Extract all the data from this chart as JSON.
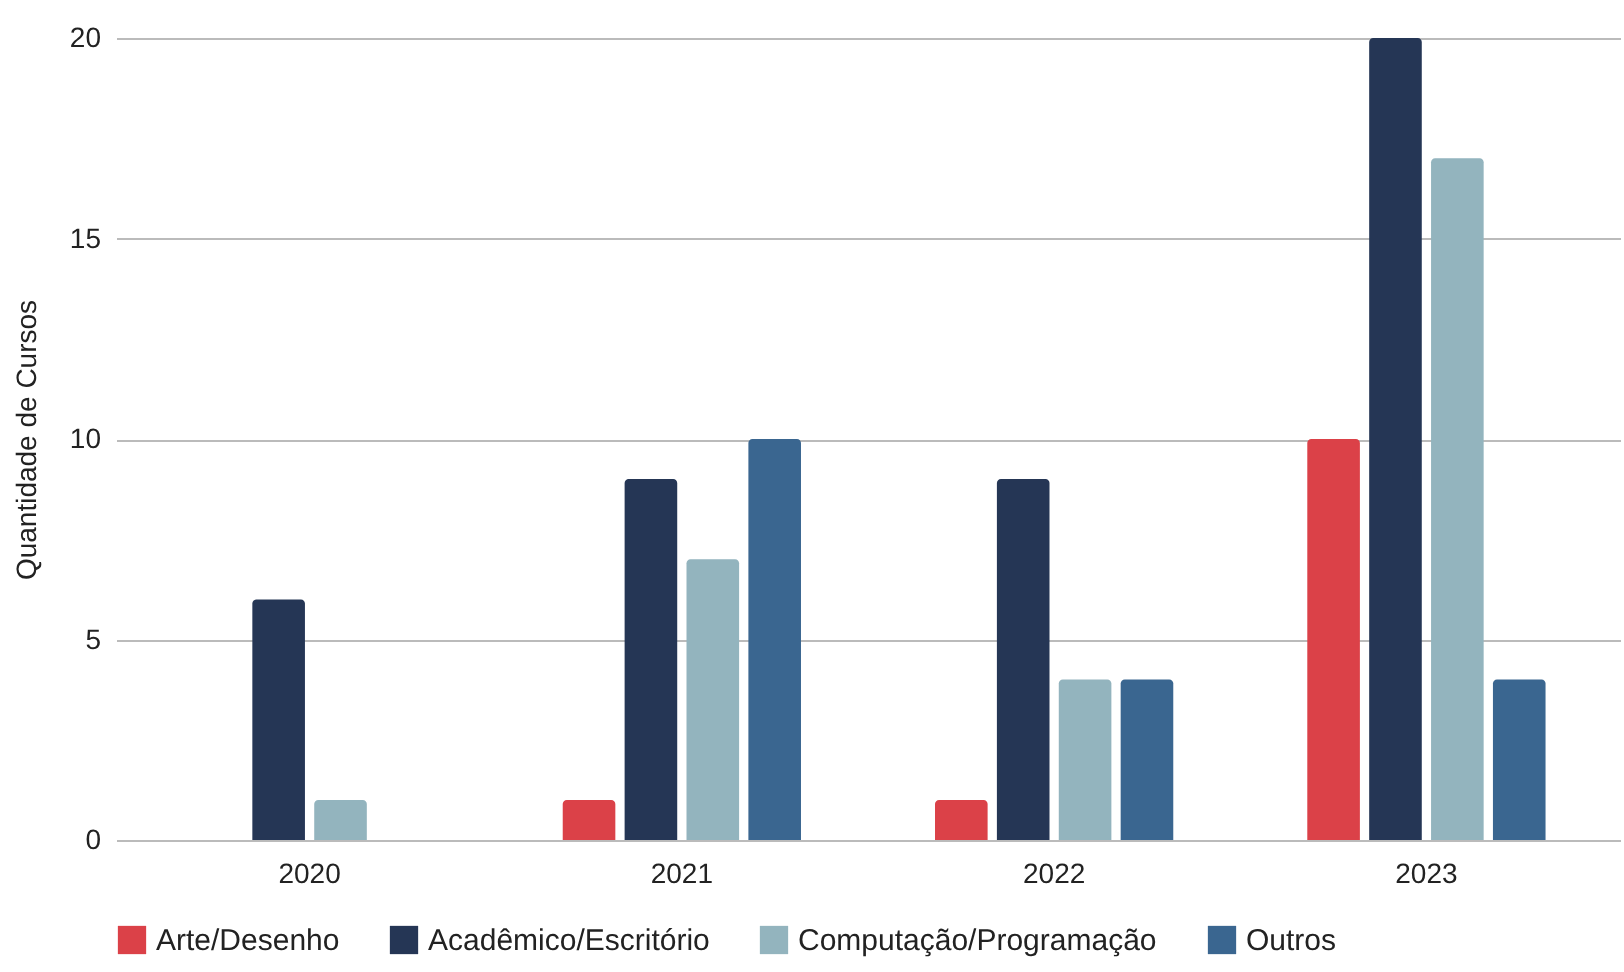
{
  "chart_data": {
    "type": "bar",
    "ylabel": "Quantidade de Cursos",
    "categories": [
      "2020",
      "2021",
      "2022",
      "2023"
    ],
    "series": [
      {
        "name": "Arte/Desenho",
        "color": "#db4148",
        "values": [
          0,
          1,
          1,
          10
        ]
      },
      {
        "name": "Acadêmico/Escritório",
        "color": "#253655",
        "values": [
          6,
          9,
          9,
          20
        ]
      },
      {
        "name": "Computação/Programação",
        "color": "#93b4be",
        "values": [
          1,
          7,
          4,
          17
        ]
      },
      {
        "name": "Outros",
        "color": "#3a6690",
        "values": [
          0,
          10,
          4,
          4
        ]
      }
    ],
    "ylim": [
      0,
      20
    ],
    "yticks": [
      0,
      5,
      10,
      15,
      20
    ],
    "grid": "y",
    "legend": "bottom"
  }
}
